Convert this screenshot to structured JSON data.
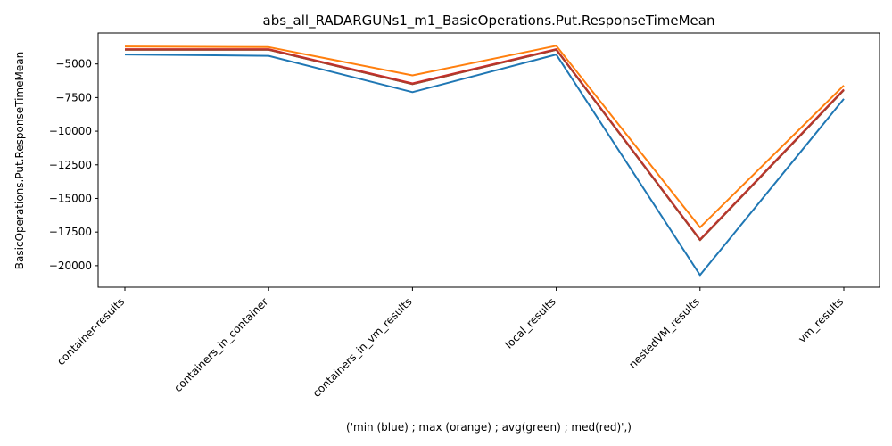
{
  "chart_data": {
    "type": "line",
    "title": "abs_all_RADARGUNs1_m1_BasicOperations.Put.ResponseTimeMean",
    "xlabel": "('min (blue) ; max (orange) ; avg(green) ; med(red)',)",
    "ylabel": "BasicOperations.Put.ResponseTimeMean",
    "categories": [
      "container-results",
      "containers_in_container",
      "containers_in_vm_results",
      "local_results",
      "nestedVM_results",
      "vm_results"
    ],
    "ylim": [
      -21600,
      -2700
    ],
    "yticks": [
      -5000,
      -7500,
      -10000,
      -12500,
      -15000,
      -17500,
      -20000
    ],
    "ytick_labels": [
      "−5000",
      "−7500",
      "−10000",
      "−12500",
      "−15000",
      "−17500",
      "−20000"
    ],
    "grid": false,
    "series": [
      {
        "color": "#1f77b4",
        "values": [
          -4300,
          -4400,
          -7100,
          -4300,
          -20700,
          -7600
        ]
      },
      {
        "color": "#ff7f0e",
        "values": [
          -3700,
          -3750,
          -5850,
          -3650,
          -17150,
          -6600
        ]
      },
      {
        "color": "#2ca02c",
        "values": [
          -3950,
          -3950,
          -6500,
          -3950,
          -18100,
          -6950
        ]
      },
      {
        "color": "#d62728",
        "values": [
          -3900,
          -3900,
          -6450,
          -3900,
          -18050,
          -6900
        ]
      },
      {
        "color": "#b03a2e",
        "values": [
          -3950,
          -3950,
          -6500,
          -3950,
          -18100,
          -6950
        ]
      }
    ]
  }
}
